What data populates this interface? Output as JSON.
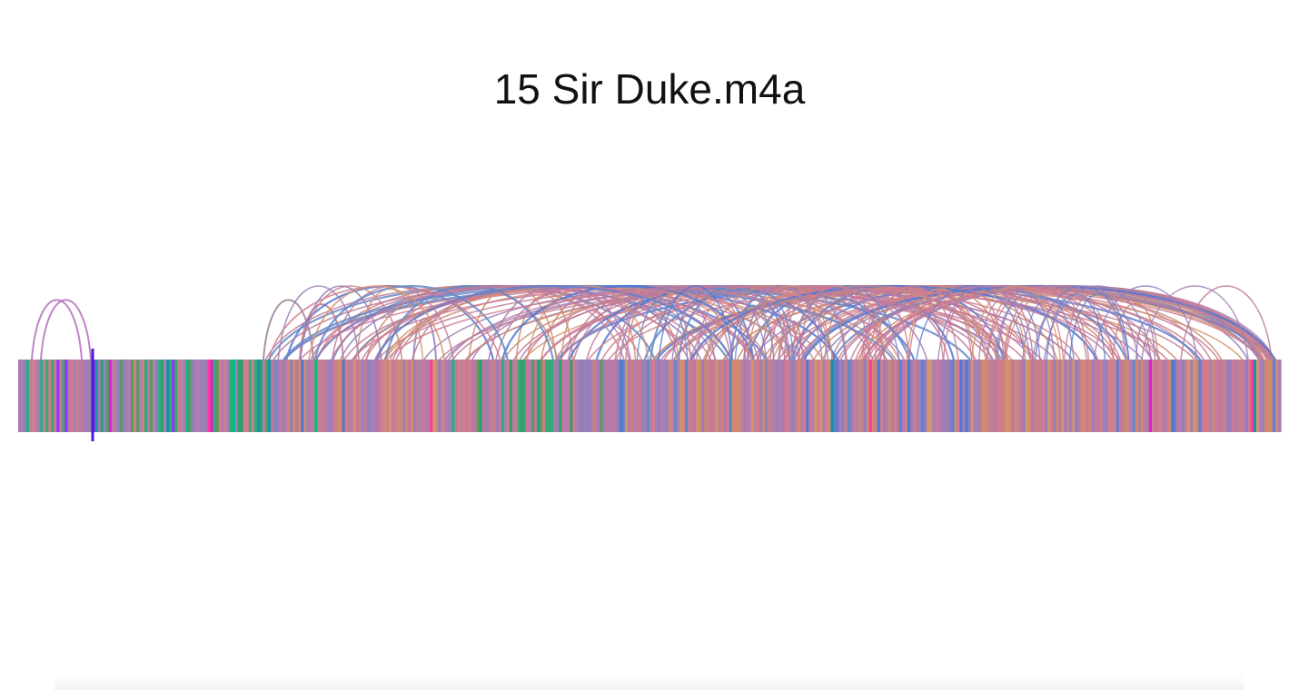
{
  "track": {
    "title": "15 Sir Duke.m4a"
  },
  "player": {
    "progress_fraction": 0.059
  },
  "palette": {
    "pinks": [
      "#c8789a",
      "#cc7f8f",
      "#b97a9e",
      "#d07d8c",
      "#bf8095"
    ],
    "oranges": [
      "#cf8a6f",
      "#c98c74",
      "#d5946e"
    ],
    "purples": [
      "#9b7fb8",
      "#a07fb4",
      "#8f7fbb",
      "#b07eb2"
    ],
    "blues": [
      "#5f7fd0",
      "#6688c8",
      "#4f78d2"
    ],
    "greens": [
      "#2f9f6e",
      "#3aa870",
      "#5a9a5f",
      "#26b07d"
    ],
    "accents": [
      "#00c08a",
      "#e020c8",
      "#9b30ff",
      "#ff3aa0",
      "#1a90a0"
    ],
    "cursor": "#4a1ad6",
    "arc_default": "#c77b8f"
  }
}
